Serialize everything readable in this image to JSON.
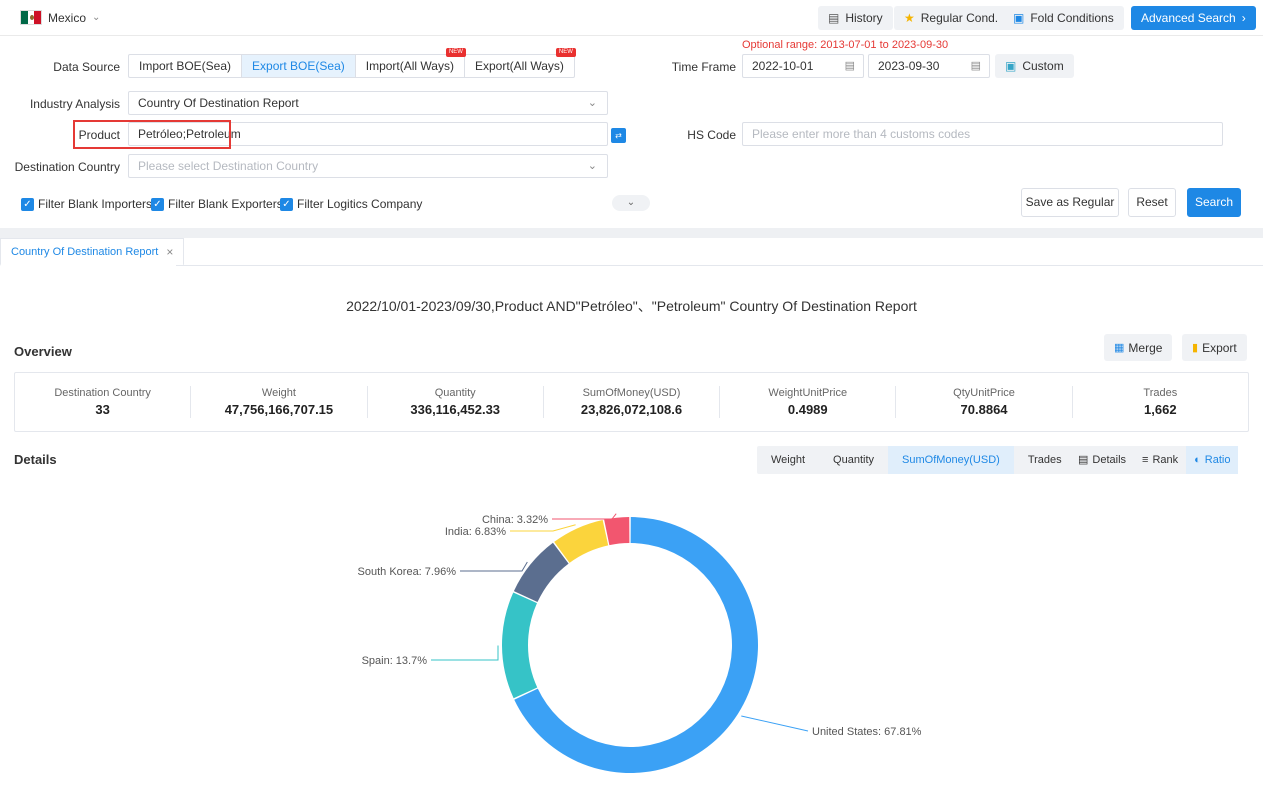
{
  "topbar": {
    "country": "Mexico",
    "history": "History",
    "regular_cond": "Regular Cond.",
    "fold_conditions": "Fold Conditions",
    "advanced_search": "Advanced Search"
  },
  "filters": {
    "optional_range": "Optional range:  2013-07-01 to 2023-09-30",
    "data_source_label": "Data Source",
    "data_sources": [
      "Import BOE(Sea)",
      "Export BOE(Sea)",
      "Import(All Ways)",
      "Export(All Ways)"
    ],
    "new_tag": "NEW",
    "time_frame_label": "Time Frame",
    "date_from": "2022-10-01",
    "date_to": "2023-09-30",
    "custom": "Custom",
    "industry_label": "Industry Analysis",
    "industry_value": "Country Of Destination Report",
    "product_label": "Product",
    "product_value": "Petróleo;Petroleum",
    "hs_label": "HS Code",
    "hs_placeholder": "Please enter more than 4 customs codes",
    "dest_label": "Destination Country",
    "dest_placeholder": "Please select Destination Country",
    "checkboxes": [
      "Filter Blank Importers",
      "Filter Blank Exporters",
      "Filter Logitics Company"
    ],
    "save_regular": "Save as Regular",
    "reset": "Reset",
    "search": "Search"
  },
  "report": {
    "tab": "Country Of Destination Report",
    "title": "2022/10/01-2023/09/30,Product AND\"Petróleo\"、\"Petroleum\" Country Of Destination Report",
    "overview": "Overview",
    "merge": "Merge",
    "export": "Export",
    "stats": [
      {
        "k": "Destination Country",
        "v": "33"
      },
      {
        "k": "Weight",
        "v": "47,756,166,707.15"
      },
      {
        "k": "Quantity",
        "v": "336,116,452.33"
      },
      {
        "k": "SumOfMoney(USD)",
        "v": "23,826,072,108.6"
      },
      {
        "k": "WeightUnitPrice",
        "v": "0.4989"
      },
      {
        "k": "QtyUnitPrice",
        "v": "70.8864"
      },
      {
        "k": "Trades",
        "v": "1,662"
      }
    ],
    "details": "Details",
    "metrics": [
      "Weight",
      "Quantity",
      "SumOfMoney(USD)",
      "Trades"
    ],
    "views": [
      "Details",
      "Rank",
      "Ratio"
    ]
  },
  "chart_data": {
    "type": "pie",
    "title": "",
    "categories": [
      "United States",
      "Spain",
      "South Korea",
      "India",
      "China"
    ],
    "values": [
      67.81,
      13.7,
      7.96,
      6.83,
      3.32
    ],
    "labels": [
      "United States: 67.81%",
      "Spain: 13.7%",
      "South Korea: 7.96%",
      "India: 6.83%",
      "China: 3.32%"
    ],
    "colors": [
      "#3ba1f5",
      "#36c3c7",
      "#5b6e8f",
      "#fbd43c",
      "#f2566f"
    ],
    "style": "donut",
    "legend": "none"
  }
}
